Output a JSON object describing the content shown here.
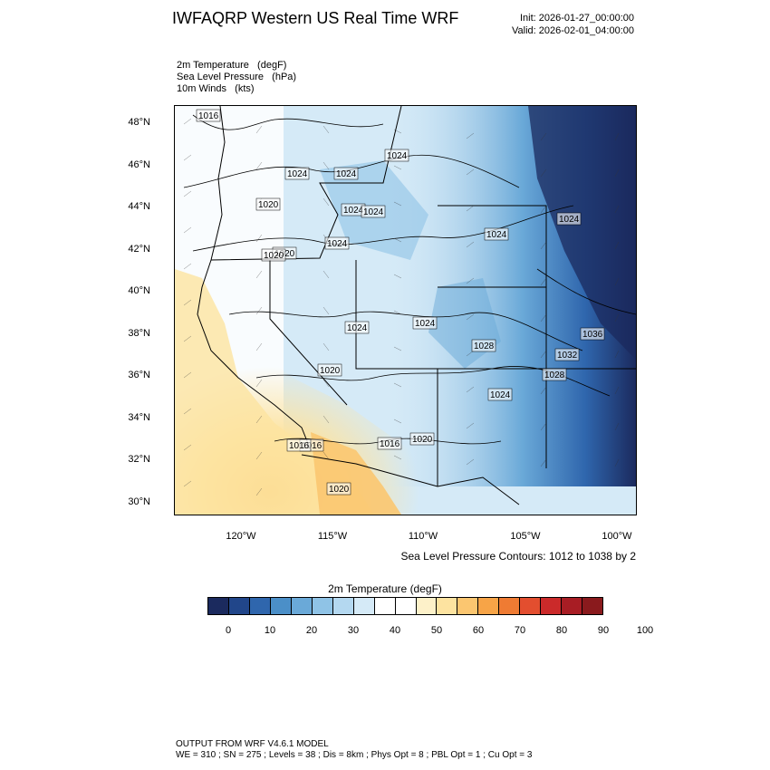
{
  "header": {
    "title": "IWFAQRP Western US Real Time WRF",
    "init": "Init: 2026-01-27_00:00:00",
    "valid": "Valid: 2026-02-01_04:00:00"
  },
  "fields": [
    "2m Temperature   (degF)",
    "Sea Level Pressure   (hPa)",
    "10m Winds   (kts)"
  ],
  "axes": {
    "lat_ticks": [
      "48°N",
      "46°N",
      "44°N",
      "42°N",
      "40°N",
      "38°N",
      "36°N",
      "34°N",
      "32°N",
      "30°N"
    ],
    "lon_ticks": [
      "120°W",
      "115°W",
      "110°W",
      "105°W",
      "100°W"
    ]
  },
  "slp_labels": [
    "1016",
    "1024",
    "1024",
    "1024",
    "1020",
    "1024",
    "1024",
    "1024",
    "1020",
    "1024",
    "1024",
    "1020",
    "1036",
    "1020",
    "1024",
    "1024",
    "1028",
    "1032",
    "1028",
    "1020",
    "1024",
    "1016",
    "1016",
    "1020",
    "1016"
  ],
  "contour_note": "Sea Level Pressure Contours: 1012 to 1038 by 2",
  "colorbar": {
    "title": "2m Temperature  (degF)",
    "colors": [
      "#1b2a5e",
      "#21468a",
      "#2f66ad",
      "#4b8fc8",
      "#6aa9d8",
      "#8fc3e6",
      "#b4d8f0",
      "#d5eaf7",
      "#ffffff",
      "#ffffff",
      "#fdf1c9",
      "#fde3a0",
      "#fbc670",
      "#f7a447",
      "#ef7b33",
      "#e34e2f",
      "#cb2a2a",
      "#a81d24",
      "#8a1a1d"
    ],
    "labels": [
      "0",
      "10",
      "20",
      "30",
      "40",
      "50",
      "60",
      "70",
      "80",
      "90",
      "100"
    ]
  },
  "footer": {
    "line1": "OUTPUT FROM WRF V4.6.1 MODEL",
    "line2": "WE = 310 ; SN = 275 ; Levels = 38 ; Dis = 8km ; Phys Opt = 8 ; PBL Opt = 1 ; Cu Opt = 3"
  }
}
